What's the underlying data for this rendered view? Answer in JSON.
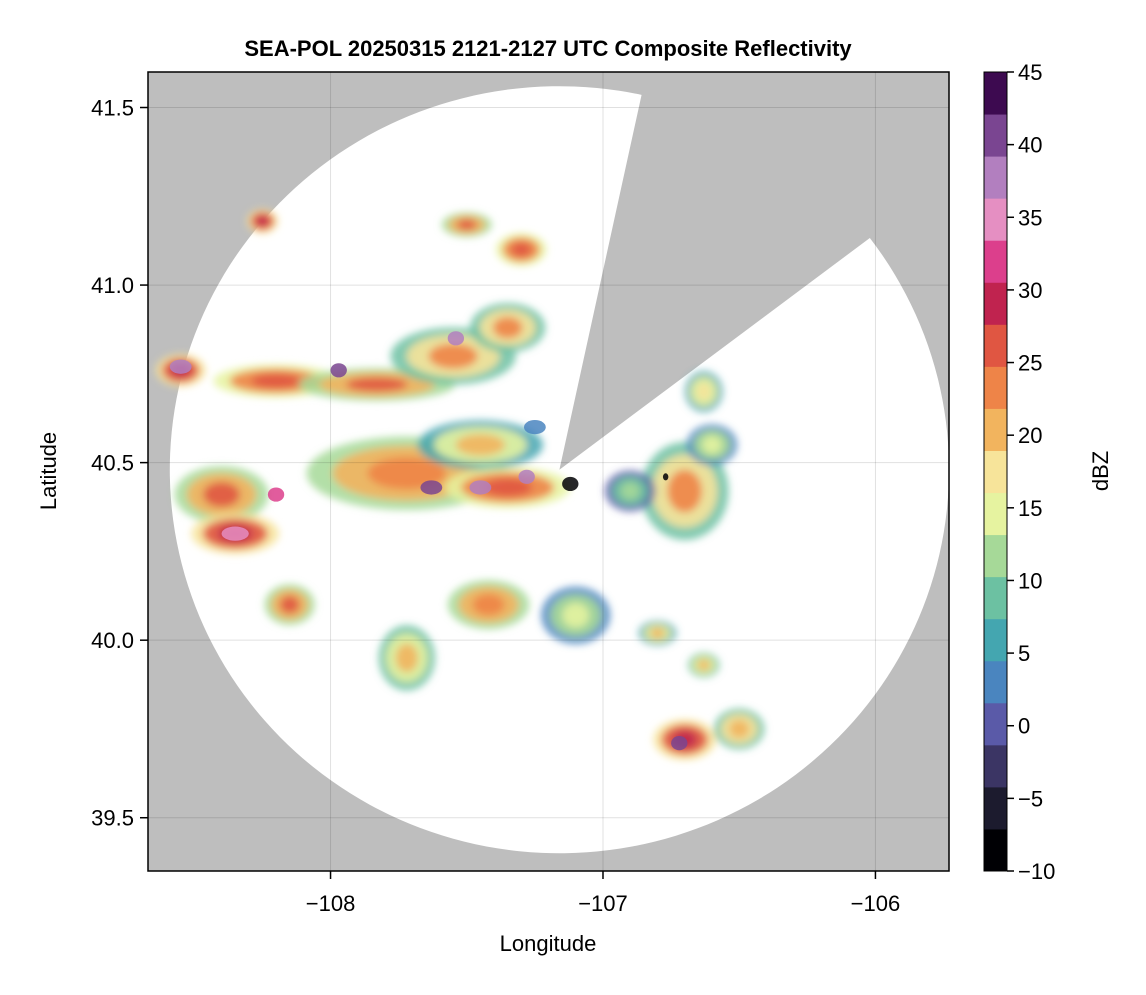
{
  "title": "SEA-POL 20250315 2121-2127 UTC Composite Reflectivity",
  "chart_data": {
    "type": "heatmap",
    "title": "SEA-POL 20250315 2121-2127 UTC Composite Reflectivity",
    "xlabel": "Longitude",
    "ylabel": "Latitude",
    "xlim": [
      -108.67,
      -105.73
    ],
    "ylim": [
      39.35,
      41.6
    ],
    "xticks": [
      -108,
      -107,
      -106
    ],
    "xtick_labels": [
      "−108",
      "−107",
      "−106"
    ],
    "yticks": [
      39.5,
      40.0,
      40.5,
      41.0,
      41.5
    ],
    "ytick_labels": [
      "39.5",
      "40.0",
      "40.5",
      "41.0",
      "41.5"
    ],
    "grid": true,
    "radar": {
      "center_lon": -107.16,
      "center_lat": 40.48,
      "range_lon": 1.43,
      "range_lat": 1.08,
      "blocked_sector_start_lon": -106.86,
      "blocked_sector_start_lat": 41.53,
      "blocked_sector_end_lon": -106.06,
      "blocked_sector_end_lat": 41.11
    },
    "colorbar": {
      "label": "dBZ",
      "min": -10,
      "max": 45,
      "ticks": [
        -10,
        -5,
        0,
        5,
        10,
        15,
        20,
        25,
        30,
        35,
        40,
        45
      ],
      "tick_labels": [
        "−10",
        "−5",
        "0",
        "5",
        "10",
        "15",
        "20",
        "25",
        "30",
        "35",
        "40",
        "45"
      ],
      "colors": [
        "#000004",
        "#1c1b2e",
        "#3b3564",
        "#5a5aa8",
        "#4a85bf",
        "#44a6b0",
        "#6cc1a2",
        "#a6d998",
        "#e6f3a0",
        "#f7e49a",
        "#f2b45e",
        "#ee8448",
        "#e05642",
        "#c0234f",
        "#dc3f8c",
        "#e58fc2",
        "#b27fbf",
        "#7a4591",
        "#3d0a50"
      ]
    },
    "background_color": "#bebebe",
    "echo_cells": [
      {
        "lon": -108.55,
        "lat": 40.76,
        "rx": 0.08,
        "ry": 0.04,
        "dbz": 30
      },
      {
        "lon": -108.2,
        "lat": 40.73,
        "rx": 0.2,
        "ry": 0.04,
        "dbz": 27
      },
      {
        "lon": -107.83,
        "lat": 40.72,
        "rx": 0.25,
        "ry": 0.04,
        "dbz": 25
      },
      {
        "lon": -107.55,
        "lat": 40.8,
        "rx": 0.2,
        "ry": 0.07,
        "dbz": 22
      },
      {
        "lon": -107.35,
        "lat": 40.88,
        "rx": 0.12,
        "ry": 0.06,
        "dbz": 22
      },
      {
        "lon": -107.72,
        "lat": 40.47,
        "rx": 0.32,
        "ry": 0.09,
        "dbz": 24
      },
      {
        "lon": -107.45,
        "lat": 40.55,
        "rx": 0.2,
        "ry": 0.06,
        "dbz": 19
      },
      {
        "lon": -107.35,
        "lat": 40.43,
        "rx": 0.2,
        "ry": 0.05,
        "dbz": 26
      },
      {
        "lon": -108.4,
        "lat": 40.41,
        "rx": 0.15,
        "ry": 0.07,
        "dbz": 25
      },
      {
        "lon": -108.35,
        "lat": 40.3,
        "rx": 0.14,
        "ry": 0.05,
        "dbz": 29
      },
      {
        "lon": -108.15,
        "lat": 40.1,
        "rx": 0.08,
        "ry": 0.05,
        "dbz": 25
      },
      {
        "lon": -107.72,
        "lat": 39.95,
        "rx": 0.09,
        "ry": 0.08,
        "dbz": 20
      },
      {
        "lon": -107.42,
        "lat": 40.1,
        "rx": 0.13,
        "ry": 0.06,
        "dbz": 23
      },
      {
        "lon": -107.1,
        "lat": 40.07,
        "rx": 0.11,
        "ry": 0.07,
        "dbz": 15
      },
      {
        "lon": -106.8,
        "lat": 40.02,
        "rx": 0.06,
        "ry": 0.03,
        "dbz": 19
      },
      {
        "lon": -106.7,
        "lat": 40.42,
        "rx": 0.14,
        "ry": 0.12,
        "dbz": 22
      },
      {
        "lon": -106.9,
        "lat": 40.42,
        "rx": 0.08,
        "ry": 0.05,
        "dbz": 12
      },
      {
        "lon": -106.7,
        "lat": 39.72,
        "rx": 0.1,
        "ry": 0.05,
        "dbz": 29
      },
      {
        "lon": -106.5,
        "lat": 39.75,
        "rx": 0.08,
        "ry": 0.05,
        "dbz": 21
      },
      {
        "lon": -106.63,
        "lat": 39.93,
        "rx": 0.05,
        "ry": 0.03,
        "dbz": 20
      },
      {
        "lon": -107.3,
        "lat": 41.1,
        "rx": 0.08,
        "ry": 0.04,
        "dbz": 27
      },
      {
        "lon": -107.5,
        "lat": 41.17,
        "rx": 0.08,
        "ry": 0.03,
        "dbz": 25
      },
      {
        "lon": -108.25,
        "lat": 41.18,
        "rx": 0.05,
        "ry": 0.03,
        "dbz": 30
      },
      {
        "lon": -106.63,
        "lat": 40.7,
        "rx": 0.06,
        "ry": 0.05,
        "dbz": 18
      },
      {
        "lon": -106.6,
        "lat": 40.55,
        "rx": 0.08,
        "ry": 0.05,
        "dbz": 16
      }
    ],
    "core_cells": [
      {
        "lon": -108.55,
        "lat": 40.77,
        "rx": 0.04,
        "ry": 0.02,
        "dbz": 37
      },
      {
        "lon": -108.35,
        "lat": 40.3,
        "rx": 0.05,
        "ry": 0.02,
        "dbz": 34
      },
      {
        "lon": -107.45,
        "lat": 40.43,
        "rx": 0.04,
        "ry": 0.02,
        "dbz": 39
      },
      {
        "lon": -107.63,
        "lat": 40.43,
        "rx": 0.04,
        "ry": 0.02,
        "dbz": 40
      },
      {
        "lon": -107.28,
        "lat": 40.46,
        "rx": 0.03,
        "ry": 0.02,
        "dbz": 38
      },
      {
        "lon": -107.97,
        "lat": 40.76,
        "rx": 0.03,
        "ry": 0.02,
        "dbz": 40
      },
      {
        "lon": -107.54,
        "lat": 40.85,
        "rx": 0.03,
        "ry": 0.02,
        "dbz": 38
      },
      {
        "lon": -106.72,
        "lat": 39.71,
        "rx": 0.03,
        "ry": 0.02,
        "dbz": 41
      },
      {
        "lon": -107.12,
        "lat": 40.44,
        "rx": 0.03,
        "ry": 0.02,
        "dbz": -8
      },
      {
        "lon": -106.77,
        "lat": 40.46,
        "rx": 0.01,
        "ry": 0.01,
        "dbz": -8
      },
      {
        "lon": -107.25,
        "lat": 40.6,
        "rx": 0.04,
        "ry": 0.02,
        "dbz": 2
      },
      {
        "lon": -108.2,
        "lat": 40.41,
        "rx": 0.03,
        "ry": 0.02,
        "dbz": 33
      }
    ]
  }
}
